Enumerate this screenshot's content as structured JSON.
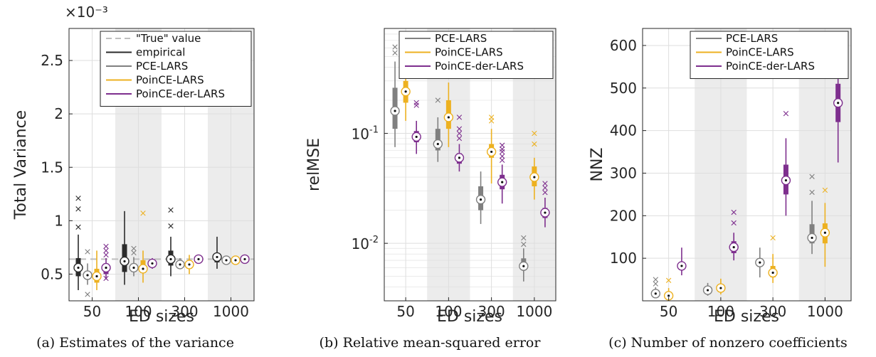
{
  "colors": {
    "empirical": "#2b2b2b",
    "pce": "#808080",
    "poince": "#edb120",
    "poincder": "#7e2f8e",
    "true_value": "#bfbfbf",
    "shade": "#ececec",
    "grid": "#dedede"
  },
  "chart_data": [
    {
      "type": "box",
      "title": "",
      "xlabel": "ED sizes",
      "ylabel": "Total Variance",
      "exponent_label": "×10⁻³",
      "categories": [
        "50",
        "100",
        "300",
        "1000"
      ],
      "ylim": [
        0.25,
        2.8
      ],
      "yticks": [
        0.5,
        1,
        1.5,
        2,
        2.5
      ],
      "ytick_labels": [
        "0.5",
        "1",
        "1.5",
        "2",
        "2.5"
      ],
      "scale": "linear",
      "grid": true,
      "legend_position": "top-right",
      "legend": [
        {
          "label": "\"True\" value",
          "color_key": "true_value",
          "dashed": true
        },
        {
          "label": "empirical",
          "color_key": "empirical"
        },
        {
          "label": "PCE-LARS",
          "color_key": "pce"
        },
        {
          "label": "PoinCE-LARS",
          "color_key": "poince"
        },
        {
          "label": "PoinCE-der-LARS",
          "color_key": "poincder"
        }
      ],
      "reference_line": {
        "value": 0.64,
        "color_key": "true_value"
      },
      "series": [
        {
          "name": "empirical",
          "color_key": "empirical",
          "offset": -0.3,
          "boxes": [
            {
              "wl": 0.35,
              "q1": 0.48,
              "median": 0.56,
              "q3": 0.65,
              "wh": 0.87,
              "outliers": [
                0.94,
                1.11,
                1.21
              ]
            },
            {
              "wl": 0.4,
              "q1": 0.52,
              "median": 0.62,
              "q3": 0.78,
              "wh": 1.09,
              "outliers": []
            },
            {
              "wl": 0.48,
              "q1": 0.58,
              "median": 0.64,
              "q3": 0.72,
              "wh": 0.85,
              "outliers": [
                0.95,
                1.1
              ]
            },
            {
              "wl": 0.55,
              "q1": 0.61,
              "median": 0.66,
              "q3": 0.69,
              "wh": 0.85,
              "outliers": []
            }
          ]
        },
        {
          "name": "PCE-LARS",
          "color_key": "pce",
          "offset": -0.1,
          "boxes": [
            {
              "wl": 0.4,
              "q1": 0.45,
              "median": 0.49,
              "q3": 0.53,
              "wh": 0.6,
              "outliers": [
                0.31,
                0.71
              ]
            },
            {
              "wl": 0.48,
              "q1": 0.52,
              "median": 0.56,
              "q3": 0.6,
              "wh": 0.66,
              "outliers": [
                0.7,
                0.74
              ]
            },
            {
              "wl": 0.55,
              "q1": 0.57,
              "median": 0.59,
              "q3": 0.62,
              "wh": 0.65,
              "outliers": []
            },
            {
              "wl": 0.6,
              "q1": 0.61,
              "median": 0.63,
              "q3": 0.64,
              "wh": 0.66,
              "outliers": []
            }
          ]
        },
        {
          "name": "PoinCE-LARS",
          "color_key": "poince",
          "offset": 0.1,
          "boxes": [
            {
              "wl": 0.35,
              "q1": 0.42,
              "median": 0.48,
              "q3": 0.55,
              "wh": 0.72,
              "outliers": []
            },
            {
              "wl": 0.42,
              "q1": 0.51,
              "median": 0.55,
              "q3": 0.63,
              "wh": 0.72,
              "outliers": [
                1.07
              ]
            },
            {
              "wl": 0.5,
              "q1": 0.55,
              "median": 0.59,
              "q3": 0.63,
              "wh": 0.68,
              "outliers": []
            },
            {
              "wl": 0.6,
              "q1": 0.61,
              "median": 0.63,
              "q3": 0.64,
              "wh": 0.66,
              "outliers": []
            }
          ]
        },
        {
          "name": "PoinCE-der-LARS",
          "color_key": "poincder",
          "offset": 0.3,
          "boxes": [
            {
              "wl": 0.45,
              "q1": 0.5,
              "median": 0.56,
              "q3": 0.6,
              "wh": 0.65,
              "outliers": [
                0.46,
                0.68,
                0.72,
                0.76
              ]
            },
            {
              "wl": 0.55,
              "q1": 0.57,
              "median": 0.6,
              "q3": 0.62,
              "wh": 0.65,
              "outliers": []
            },
            {
              "wl": 0.61,
              "q1": 0.63,
              "median": 0.64,
              "q3": 0.65,
              "wh": 0.67,
              "outliers": []
            },
            {
              "wl": 0.62,
              "q1": 0.63,
              "median": 0.64,
              "q3": 0.66,
              "wh": 0.68,
              "outliers": []
            }
          ]
        }
      ],
      "caption": "(a) Estimates of the variance"
    },
    {
      "type": "box",
      "title": "",
      "xlabel": "ED sizes",
      "ylabel": "relMSE",
      "categories": [
        "50",
        "100",
        "300",
        "1000"
      ],
      "ylim": [
        0.003,
        0.9
      ],
      "yticks": [
        0.1,
        0.01
      ],
      "ytick_labels": [
        [
          "10",
          "-1"
        ],
        [
          "10",
          "-2"
        ]
      ],
      "scale": "log",
      "grid": true,
      "legend_position": "top-right",
      "legend": [
        {
          "label": "PCE-LARS",
          "color_key": "pce"
        },
        {
          "label": "PoinCE-LARS",
          "color_key": "poince"
        },
        {
          "label": "PoinCE-der-LARS",
          "color_key": "poincder"
        }
      ],
      "series": [
        {
          "name": "PCE-LARS",
          "color_key": "pce",
          "offset": -0.25,
          "boxes": [
            {
              "wl": 0.075,
              "q1": 0.11,
              "median": 0.16,
              "q3": 0.26,
              "wh": 0.45,
              "outliers": [
                0.54,
                0.61
              ]
            },
            {
              "wl": 0.055,
              "q1": 0.07,
              "median": 0.08,
              "q3": 0.11,
              "wh": 0.14,
              "outliers": [
                0.2,
                0.78
              ]
            },
            {
              "wl": 0.015,
              "q1": 0.02,
              "median": 0.025,
              "q3": 0.033,
              "wh": 0.045,
              "outliers": []
            },
            {
              "wl": 0.0045,
              "q1": 0.0057,
              "median": 0.0062,
              "q3": 0.0073,
              "wh": 0.009,
              "outliers": [
                0.0098,
                0.0112
              ]
            }
          ]
        },
        {
          "name": "PoinCE-LARS",
          "color_key": "poince",
          "offset": 0.0,
          "boxes": [
            {
              "wl": 0.13,
              "q1": 0.19,
              "median": 0.24,
              "q3": 0.3,
              "wh": 0.5,
              "outliers": [
                0.56,
                0.59
              ]
            },
            {
              "wl": 0.075,
              "q1": 0.11,
              "median": 0.14,
              "q3": 0.2,
              "wh": 0.29,
              "outliers": []
            },
            {
              "wl": 0.035,
              "q1": 0.06,
              "median": 0.068,
              "q3": 0.08,
              "wh": 0.11,
              "outliers": [
                0.13,
                0.14
              ]
            },
            {
              "wl": 0.025,
              "q1": 0.033,
              "median": 0.04,
              "q3": 0.05,
              "wh": 0.06,
              "outliers": [
                0.08,
                0.1
              ]
            }
          ]
        },
        {
          "name": "PoinCE-der-LARS",
          "color_key": "poincder",
          "offset": 0.25,
          "boxes": [
            {
              "wl": 0.065,
              "q1": 0.083,
              "median": 0.093,
              "q3": 0.105,
              "wh": 0.13,
              "outliers": [
                0.18,
                0.19
              ]
            },
            {
              "wl": 0.045,
              "q1": 0.053,
              "median": 0.06,
              "q3": 0.066,
              "wh": 0.08,
              "outliers": [
                0.09,
                0.1,
                0.11,
                0.14
              ]
            },
            {
              "wl": 0.023,
              "q1": 0.031,
              "median": 0.036,
              "q3": 0.042,
              "wh": 0.052,
              "outliers": [
                0.057,
                0.062,
                0.068,
                0.072,
                0.078
              ]
            },
            {
              "wl": 0.014,
              "q1": 0.017,
              "median": 0.019,
              "q3": 0.021,
              "wh": 0.026,
              "outliers": [
                0.029,
                0.032,
                0.035
              ]
            }
          ]
        }
      ],
      "caption": "(b) Relative mean-squared error"
    },
    {
      "type": "box",
      "title": "",
      "xlabel": "ED sizes",
      "ylabel": "NNZ",
      "categories": [
        "50",
        "100",
        "300",
        "1000"
      ],
      "ylim": [
        0,
        640
      ],
      "yticks": [
        100,
        200,
        300,
        400,
        500,
        600
      ],
      "ytick_labels": [
        "100",
        "200",
        "300",
        "400",
        "500",
        "600"
      ],
      "scale": "linear",
      "grid": true,
      "legend_position": "top-right",
      "legend": [
        {
          "label": "PCE-LARS",
          "color_key": "pce"
        },
        {
          "label": "PoinCE-LARS",
          "color_key": "poince"
        },
        {
          "label": "PoinCE-der-LARS",
          "color_key": "poincder"
        }
      ],
      "series": [
        {
          "name": "PCE-LARS",
          "color_key": "pce",
          "offset": -0.25,
          "boxes": [
            {
              "wl": 8,
              "q1": 13,
              "median": 17,
              "q3": 22,
              "wh": 32,
              "outliers": [
                40,
                50
              ]
            },
            {
              "wl": 12,
              "q1": 20,
              "median": 25,
              "q3": 30,
              "wh": 42,
              "outliers": []
            },
            {
              "wl": 55,
              "q1": 80,
              "median": 90,
              "q3": 100,
              "wh": 125,
              "outliers": []
            },
            {
              "wl": 110,
              "q1": 135,
              "median": 148,
              "q3": 180,
              "wh": 235,
              "outliers": [
                255,
                292
              ]
            }
          ]
        },
        {
          "name": "PoinCE-LARS",
          "color_key": "poince",
          "offset": 0.0,
          "boxes": [
            {
              "wl": 3,
              "q1": 8,
              "median": 12,
              "q3": 17,
              "wh": 30,
              "outliers": [
                48
              ]
            },
            {
              "wl": 15,
              "q1": 22,
              "median": 30,
              "q3": 38,
              "wh": 52,
              "outliers": []
            },
            {
              "wl": 42,
              "q1": 55,
              "median": 66,
              "q3": 82,
              "wh": 110,
              "outliers": [
                148
              ]
            },
            {
              "wl": 80,
              "q1": 135,
              "median": 160,
              "q3": 182,
              "wh": 230,
              "outliers": [
                260
              ]
            }
          ]
        },
        {
          "name": "PoinCE-der-LARS",
          "color_key": "poincder",
          "offset": 0.25,
          "boxes": [
            {
              "wl": 60,
              "q1": 75,
              "median": 82,
              "q3": 90,
              "wh": 125,
              "outliers": []
            },
            {
              "wl": 95,
              "q1": 112,
              "median": 126,
              "q3": 140,
              "wh": 160,
              "outliers": [
                183,
                208
              ]
            },
            {
              "wl": 200,
              "q1": 250,
              "median": 283,
              "q3": 320,
              "wh": 382,
              "outliers": [
                440
              ]
            },
            {
              "wl": 325,
              "q1": 420,
              "median": 465,
              "q3": 510,
              "wh": 580,
              "outliers": []
            }
          ]
        }
      ],
      "caption": "(c) Number of nonzero coefficients"
    }
  ]
}
